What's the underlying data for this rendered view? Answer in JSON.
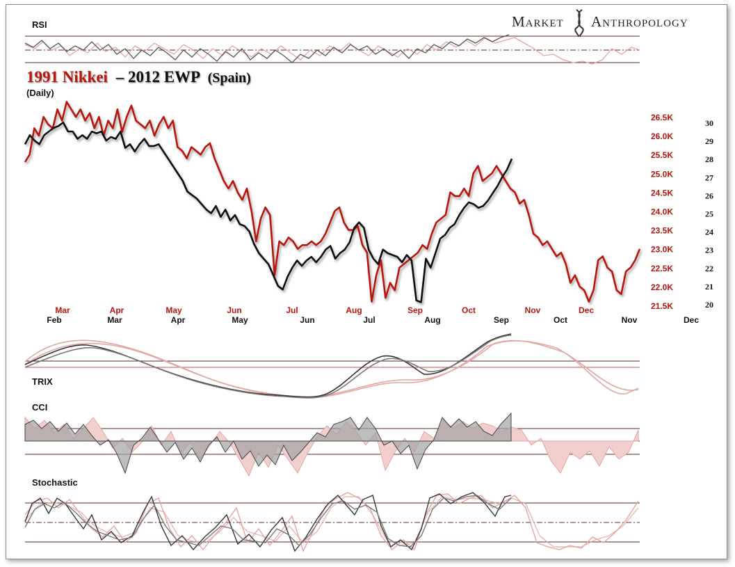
{
  "brand": {
    "left": "Market",
    "right": "Anthropology"
  },
  "title": {
    "part_red": "1991 Nikkei",
    "part_black": "– 2012 EWP",
    "part_paren": "(Spain)",
    "subtitle": "(Daily)"
  },
  "panels": {
    "rsi": "RSI",
    "trix": "TRIX",
    "cci": "CCI",
    "stochastic": "Stochastic"
  },
  "colors": {
    "nikkei": "#b8150f",
    "ewp": "#111111",
    "nikkei_light": "#e2a6a3",
    "ewp_light": "#777777"
  },
  "chart_data": {
    "type": "line",
    "title": "1991 Nikkei – 2012 EWP (Spain)",
    "subtitle": "(Daily)",
    "x_ticks_red": [
      "Mar",
      "Apr",
      "May",
      "Jun",
      "Jul",
      "Aug",
      "Sep",
      "Oct",
      "Nov",
      "Dec"
    ],
    "x_ticks_black": [
      "Feb",
      "Mar",
      "Apr",
      "May",
      "Jun",
      "Jul",
      "Aug",
      "Sep",
      "Oct",
      "Nov",
      "Dec"
    ],
    "y_left_ticks": [
      "26.5K",
      "26.0K",
      "25.5K",
      "25.0K",
      "24.5K",
      "24.0K",
      "23.5K",
      "23.0K",
      "22.5K",
      "22.0K",
      "21.5K"
    ],
    "y_left_values": [
      26500,
      26000,
      25500,
      25000,
      24500,
      24000,
      23500,
      23000,
      22500,
      22000,
      21500
    ],
    "y_right_ticks": [
      "30",
      "29",
      "28",
      "27",
      "26",
      "25",
      "24",
      "23",
      "22",
      "21",
      "20"
    ],
    "y_right_values": [
      30,
      29,
      28,
      27,
      26,
      25,
      24,
      23,
      22,
      21,
      20
    ],
    "series": [
      {
        "name": "1991 Nikkei",
        "axis": "left",
        "x_start": "Feb 1991",
        "values": [
          25300,
          25500,
          26200,
          26000,
          26500,
          26300,
          26200,
          26700,
          26400,
          26900,
          26700,
          26500,
          26700,
          26400,
          26600,
          26200,
          26500,
          26000,
          26400,
          26200,
          26700,
          26100,
          26500,
          26800,
          26400,
          26300,
          26200,
          26400,
          26000,
          26300,
          26500,
          26200,
          26400,
          25700,
          25600,
          25400,
          25700,
          25600,
          25500,
          25700,
          25800,
          25400,
          25100,
          24800,
          24600,
          24800,
          24500,
          24300,
          24600,
          24000,
          23200,
          23800,
          24100,
          23900,
          22300,
          23200,
          23100,
          23300,
          23200,
          23000,
          23100,
          23100,
          23200,
          23100,
          23200,
          23400,
          23700,
          24000,
          24100,
          23700,
          23500,
          23500,
          23600,
          23100,
          22900,
          21600,
          22300,
          22700,
          21700,
          22100,
          21900,
          22500,
          22600,
          22700,
          22800,
          22900,
          23100,
          23000,
          23400,
          23700,
          23800,
          23900,
          24500,
          24400,
          24400,
          24600,
          24400,
          25000,
          25200,
          24800,
          24900,
          25000,
          25200,
          25000,
          24800,
          24600,
          24500,
          24200,
          24300,
          23900,
          23400,
          23300,
          23100,
          23200,
          23000,
          22800,
          22900,
          22600,
          22100,
          22300,
          22000,
          21900,
          21600,
          21900,
          22700,
          22800,
          22500,
          22400,
          21900,
          21800,
          22400,
          22500,
          22700,
          23000
        ]
      },
      {
        "name": "2012 EWP",
        "axis": "right",
        "x_start": "Jan 2012",
        "values": [
          28.8,
          29.3,
          29.0,
          28.8,
          29.3,
          29.5,
          29.7,
          29.8,
          30.0,
          29.5,
          29.5,
          29.1,
          29.3,
          29.1,
          29.5,
          29.4,
          29.5,
          29.0,
          29.2,
          29.1,
          29.5,
          28.6,
          28.8,
          28.4,
          28.8,
          29.1,
          28.7,
          28.7,
          28.8,
          28.4,
          28.0,
          27.6,
          27.2,
          26.8,
          26.2,
          26.0,
          25.8,
          25.5,
          25.2,
          25.0,
          25.4,
          24.8,
          25.2,
          24.6,
          24.9,
          24.4,
          24.3,
          24.0,
          23.3,
          22.8,
          22.5,
          22.2,
          21.6,
          21.0,
          20.8,
          21.5,
          22.0,
          22.4,
          22.1,
          22.4,
          22.6,
          22.3,
          22.6,
          23.0,
          23.2,
          22.5,
          22.8,
          23.0,
          23.4,
          24.2,
          24.5,
          24.2,
          23.0,
          22.5,
          22.2,
          23.0,
          22.8,
          22.7,
          22.6,
          22.3,
          22.7,
          22.4,
          20.2,
          20.1,
          22.5,
          22.0,
          22.8,
          23.6,
          23.8,
          24.2,
          24.4,
          24.9,
          25.3,
          25.6,
          25.5,
          25.3,
          25.4,
          25.7,
          26.1,
          26.5,
          27.0,
          27.4,
          28.0
        ]
      }
    ],
    "indicators": [
      "RSI",
      "TRIX",
      "CCI",
      "Stochastic"
    ]
  }
}
